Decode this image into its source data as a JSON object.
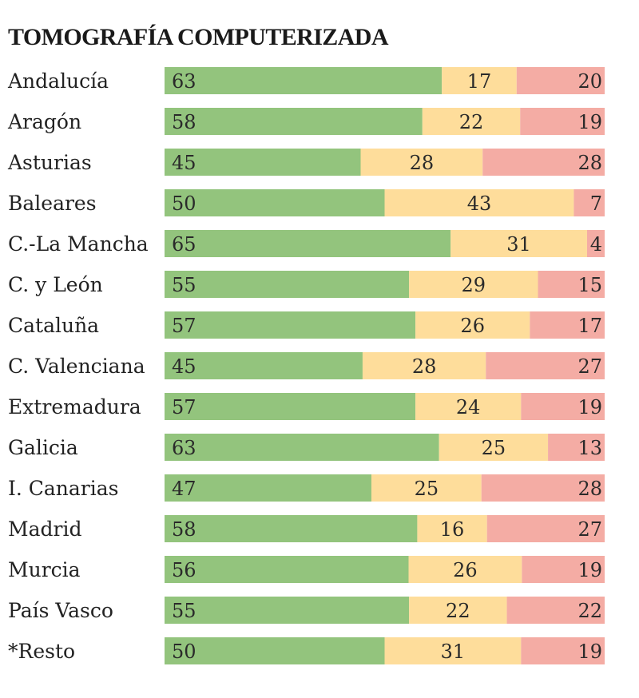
{
  "title": "TOMOGRAFÍA COMPUTERIZADA",
  "colors": {
    "segment_1": "#93c47d",
    "segment_2": "#fedd9b",
    "segment_3": "#f4aca4"
  },
  "chart_data": {
    "type": "bar",
    "orientation": "horizontal",
    "stacked": true,
    "normalized": true,
    "title": "TOMOGRAFÍA COMPUTERIZADA",
    "categories": [
      "Andalucía",
      "Aragón",
      "Asturias",
      "Baleares",
      "C.-La Mancha",
      "C. y León",
      "Cataluña",
      "C. Valenciana",
      "Extremadura",
      "Galicia",
      "I. Canarias",
      "Madrid",
      "Murcia",
      "País Vasco",
      "*Resto"
    ],
    "series": [
      {
        "color": "#93c47d",
        "values": [
          63,
          58,
          45,
          50,
          65,
          55,
          57,
          45,
          57,
          63,
          47,
          58,
          56,
          55,
          50
        ]
      },
      {
        "color": "#fedd9b",
        "values": [
          17,
          22,
          28,
          43,
          31,
          29,
          26,
          28,
          24,
          25,
          25,
          16,
          26,
          22,
          31
        ]
      },
      {
        "color": "#f4aca4",
        "values": [
          20,
          19,
          28,
          7,
          4,
          15,
          17,
          27,
          19,
          13,
          28,
          27,
          19,
          22,
          19
        ]
      }
    ],
    "legend": "none",
    "grid": false
  }
}
